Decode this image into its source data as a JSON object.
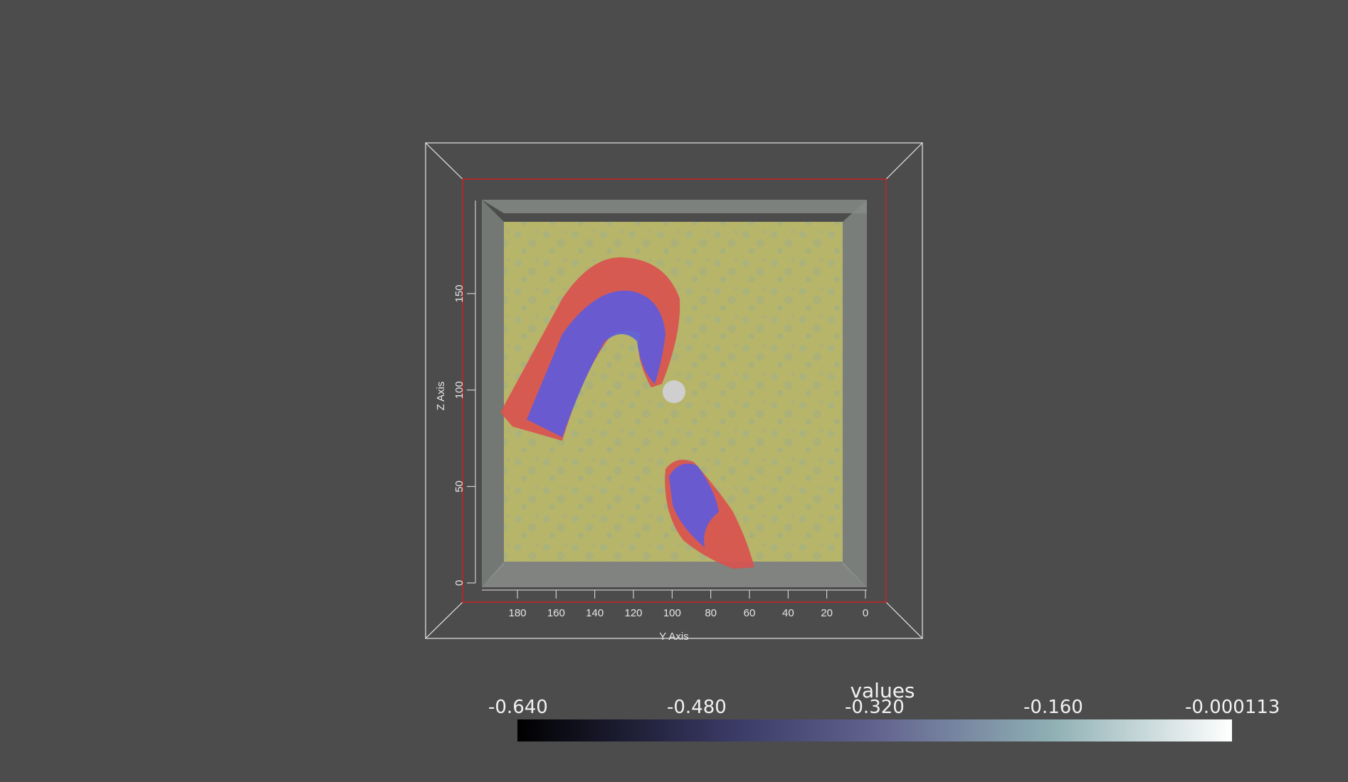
{
  "scene": {
    "y_axis": {
      "title": "Y Axis",
      "ticks": [
        "180",
        "160",
        "140",
        "120",
        "100",
        "80",
        "60",
        "40",
        "20",
        "0"
      ]
    },
    "z_axis": {
      "title": "Z Axis",
      "ticks": [
        "0",
        "50",
        "100",
        "150"
      ]
    }
  },
  "colorbar": {
    "title": "values",
    "ticks": [
      "-0.640",
      "-0.480",
      "-0.320",
      "-0.160",
      "-0.000113"
    ],
    "range": [
      -0.64,
      -0.000113
    ],
    "colors": [
      "#000000",
      "#3a3a66",
      "#62628f",
      "#7d9aa0",
      "#ffffff"
    ]
  },
  "colors": {
    "background": "#4c4c4c",
    "surface_red": "#d9524f",
    "surface_blue": "#5a5ae0",
    "slice_yellow": "#b7b56a",
    "outline_red": "#cc2222",
    "sphere": "#cfcfcf"
  }
}
